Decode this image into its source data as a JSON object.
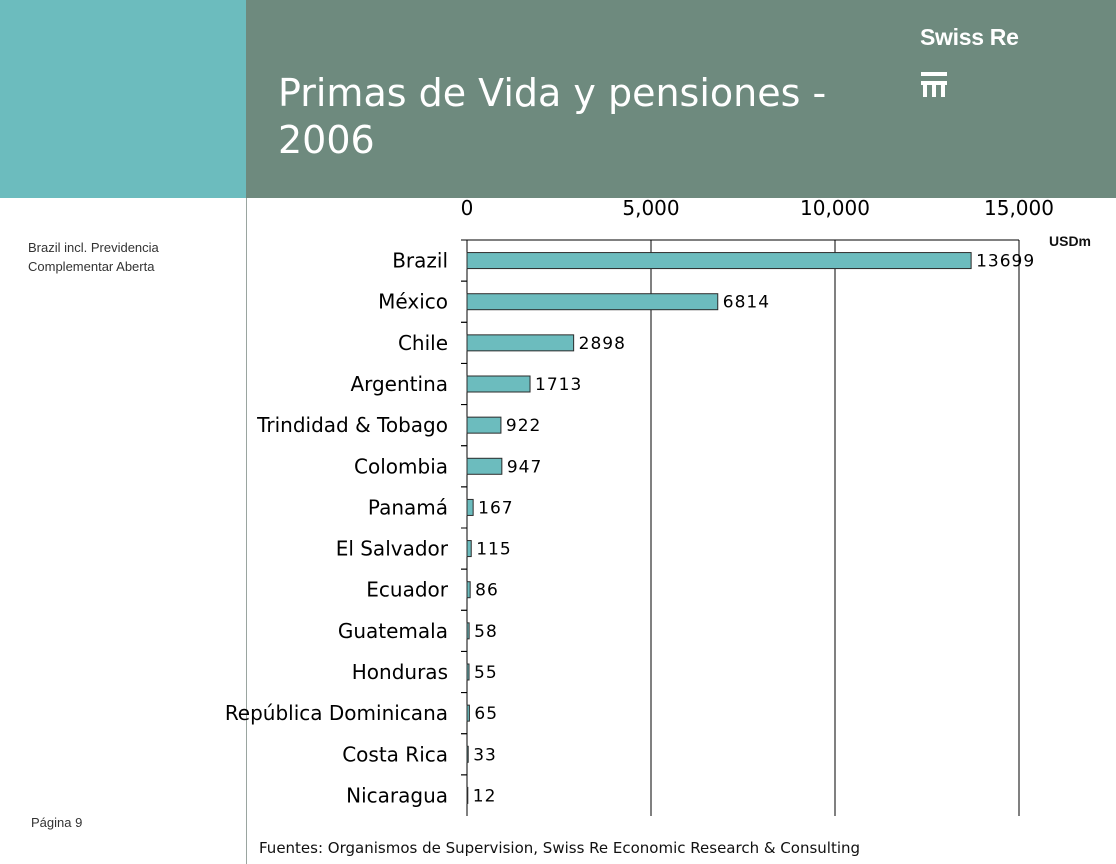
{
  "colors": {
    "teal_block": "#6cbcbe",
    "header_bg": "#6e8a7e",
    "bar_fill": "#6cbcbe",
    "bar_stroke": "#2b2b2b",
    "gridline": "#000000"
  },
  "header": {
    "title": "Primas de Vida y pensiones - 2006",
    "brand": "Swiss Re",
    "logo_icon": "swiss-re-logo-icon"
  },
  "side_note": {
    "line1": "Brazil incl. Previdencia",
    "line2": "Complementar Aberta"
  },
  "footer": {
    "page": "Página 9",
    "source": "Fuentes: Organismos de Supervision, Swiss Re Economic Research & Consulting"
  },
  "chart_data": {
    "type": "bar",
    "orientation": "horizontal",
    "title": "",
    "unit": "USDm",
    "xlim": [
      0,
      15000
    ],
    "x_ticks": [
      0,
      5000,
      10000,
      15000
    ],
    "x_tick_labels": [
      "0",
      "5,000",
      "10,000",
      "15,000"
    ],
    "grid": true,
    "axis_position": "top",
    "categories": [
      "Brazil",
      "México",
      "Chile",
      "Argentina",
      "Trindidad & Tobago",
      "Colombia",
      "Panamá",
      "El Salvador",
      "Ecuador",
      "Guatemala",
      "Honduras",
      "República Dominicana",
      "Costa Rica",
      "Nicaragua"
    ],
    "values": [
      13699,
      6814,
      2898,
      1713,
      922,
      947,
      167,
      115,
      86,
      58,
      55,
      65,
      33,
      12
    ],
    "value_labels": [
      "13699",
      "6814",
      "2898",
      "1713",
      "922",
      "947",
      "167",
      "115",
      "86",
      "58",
      "55",
      "65",
      "33",
      "12"
    ]
  }
}
